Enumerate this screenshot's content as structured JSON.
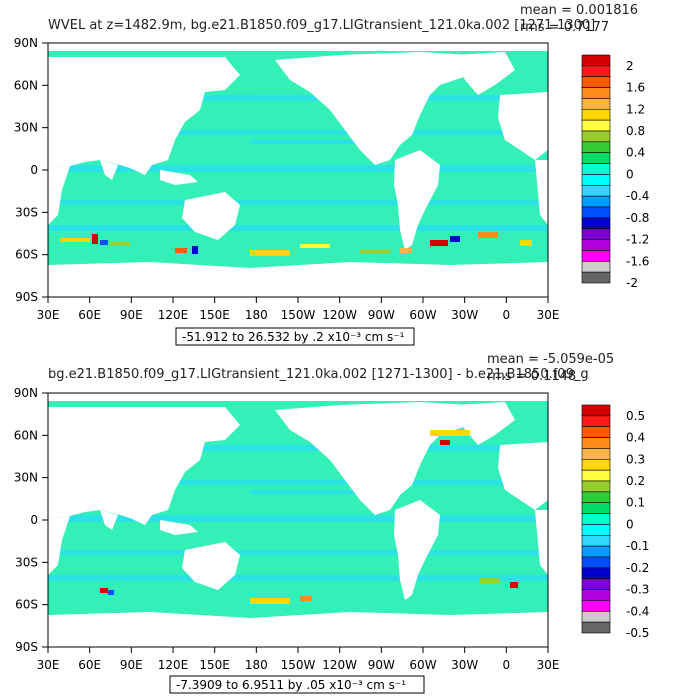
{
  "panels": [
    {
      "title": "WVEL at z=1482.9m, bg.e21.B1850.f09_g17.LIGtransient_121.0ka.002 [1271-1300]",
      "stat_mean": "mean = 0.001816",
      "stat_rms": "rms = 0.7177",
      "range_note": "-51.912 to 26.532 by .2 x10⁻³ cm s⁻¹",
      "colorbar_labels": [
        "2",
        "1.6",
        "1.2",
        "0.8",
        "0.4",
        "0",
        "-0.4",
        "-0.8",
        "-1.2",
        "-1.6",
        "-2"
      ]
    },
    {
      "title": "bg.e21.B1850.f09_g17.LIGtransient_121.0ka.002 [1271-1300] - b.e21.B1850.f09_g",
      "stat_mean": "mean = -5.059e-05",
      "stat_rms": "rms = 0.1148",
      "range_note": "-7.3909 to 6.9511 by .05 x10⁻³ cm s⁻¹",
      "colorbar_labels": [
        "0.5",
        "0.4",
        "0.3",
        "0.2",
        "0.1",
        "0",
        "-0.1",
        "-0.2",
        "-0.3",
        "-0.4",
        "-0.5"
      ]
    }
  ],
  "axes": {
    "x_ticks": [
      "30E",
      "60E",
      "90E",
      "120E",
      "150E",
      "180",
      "150W",
      "120W",
      "90W",
      "60W",
      "30W",
      "0",
      "30E"
    ],
    "y_ticks": [
      "90N",
      "60N",
      "30N",
      "0",
      "30S",
      "60S",
      "90S"
    ]
  },
  "colors": {
    "colorbar": [
      "#d40000",
      "#ff1a1a",
      "#ff5a00",
      "#ff8c1a",
      "#ffb347",
      "#ffd700",
      "#ffff40",
      "#9acd32",
      "#33cc33",
      "#00dd66",
      "#00ffcc",
      "#00ffff",
      "#30d8ff",
      "#009cff",
      "#0050ff",
      "#0000cc",
      "#7f00d4",
      "#b000e0",
      "#ff00ff",
      "#cccccc",
      "#666666"
    ],
    "ocean": "#33efb8",
    "ocean_alt": "#2ae0ea",
    "land": "#ffffff"
  },
  "chart_data": [
    {
      "type": "heatmap",
      "title": "WVEL at z=1482.9m, bg.e21.B1850.f09_g17.LIGtransient_121.0ka.002 [1271-1300]",
      "xlim": [
        30,
        390
      ],
      "ylim": [
        -90,
        90
      ],
      "colorbar_range": [
        -2,
        2
      ],
      "units": "x10⁻³ cm s⁻¹",
      "data_min": -51.912,
      "data_max": 26.532,
      "contour_interval": 0.2,
      "mean": 0.001816,
      "rms": 0.7177
    },
    {
      "type": "heatmap",
      "title": "bg.e21.B1850.f09_g17.LIGtransient_121.0ka.002 [1271-1300] - b.e21.B1850.f09_g",
      "xlim": [
        30,
        390
      ],
      "ylim": [
        -90,
        90
      ],
      "colorbar_range": [
        -0.5,
        0.5
      ],
      "units": "x10⁻³ cm s⁻¹",
      "data_min": -7.3909,
      "data_max": 6.9511,
      "contour_interval": 0.05,
      "mean": -5.059e-05,
      "rms": 0.1148
    }
  ]
}
